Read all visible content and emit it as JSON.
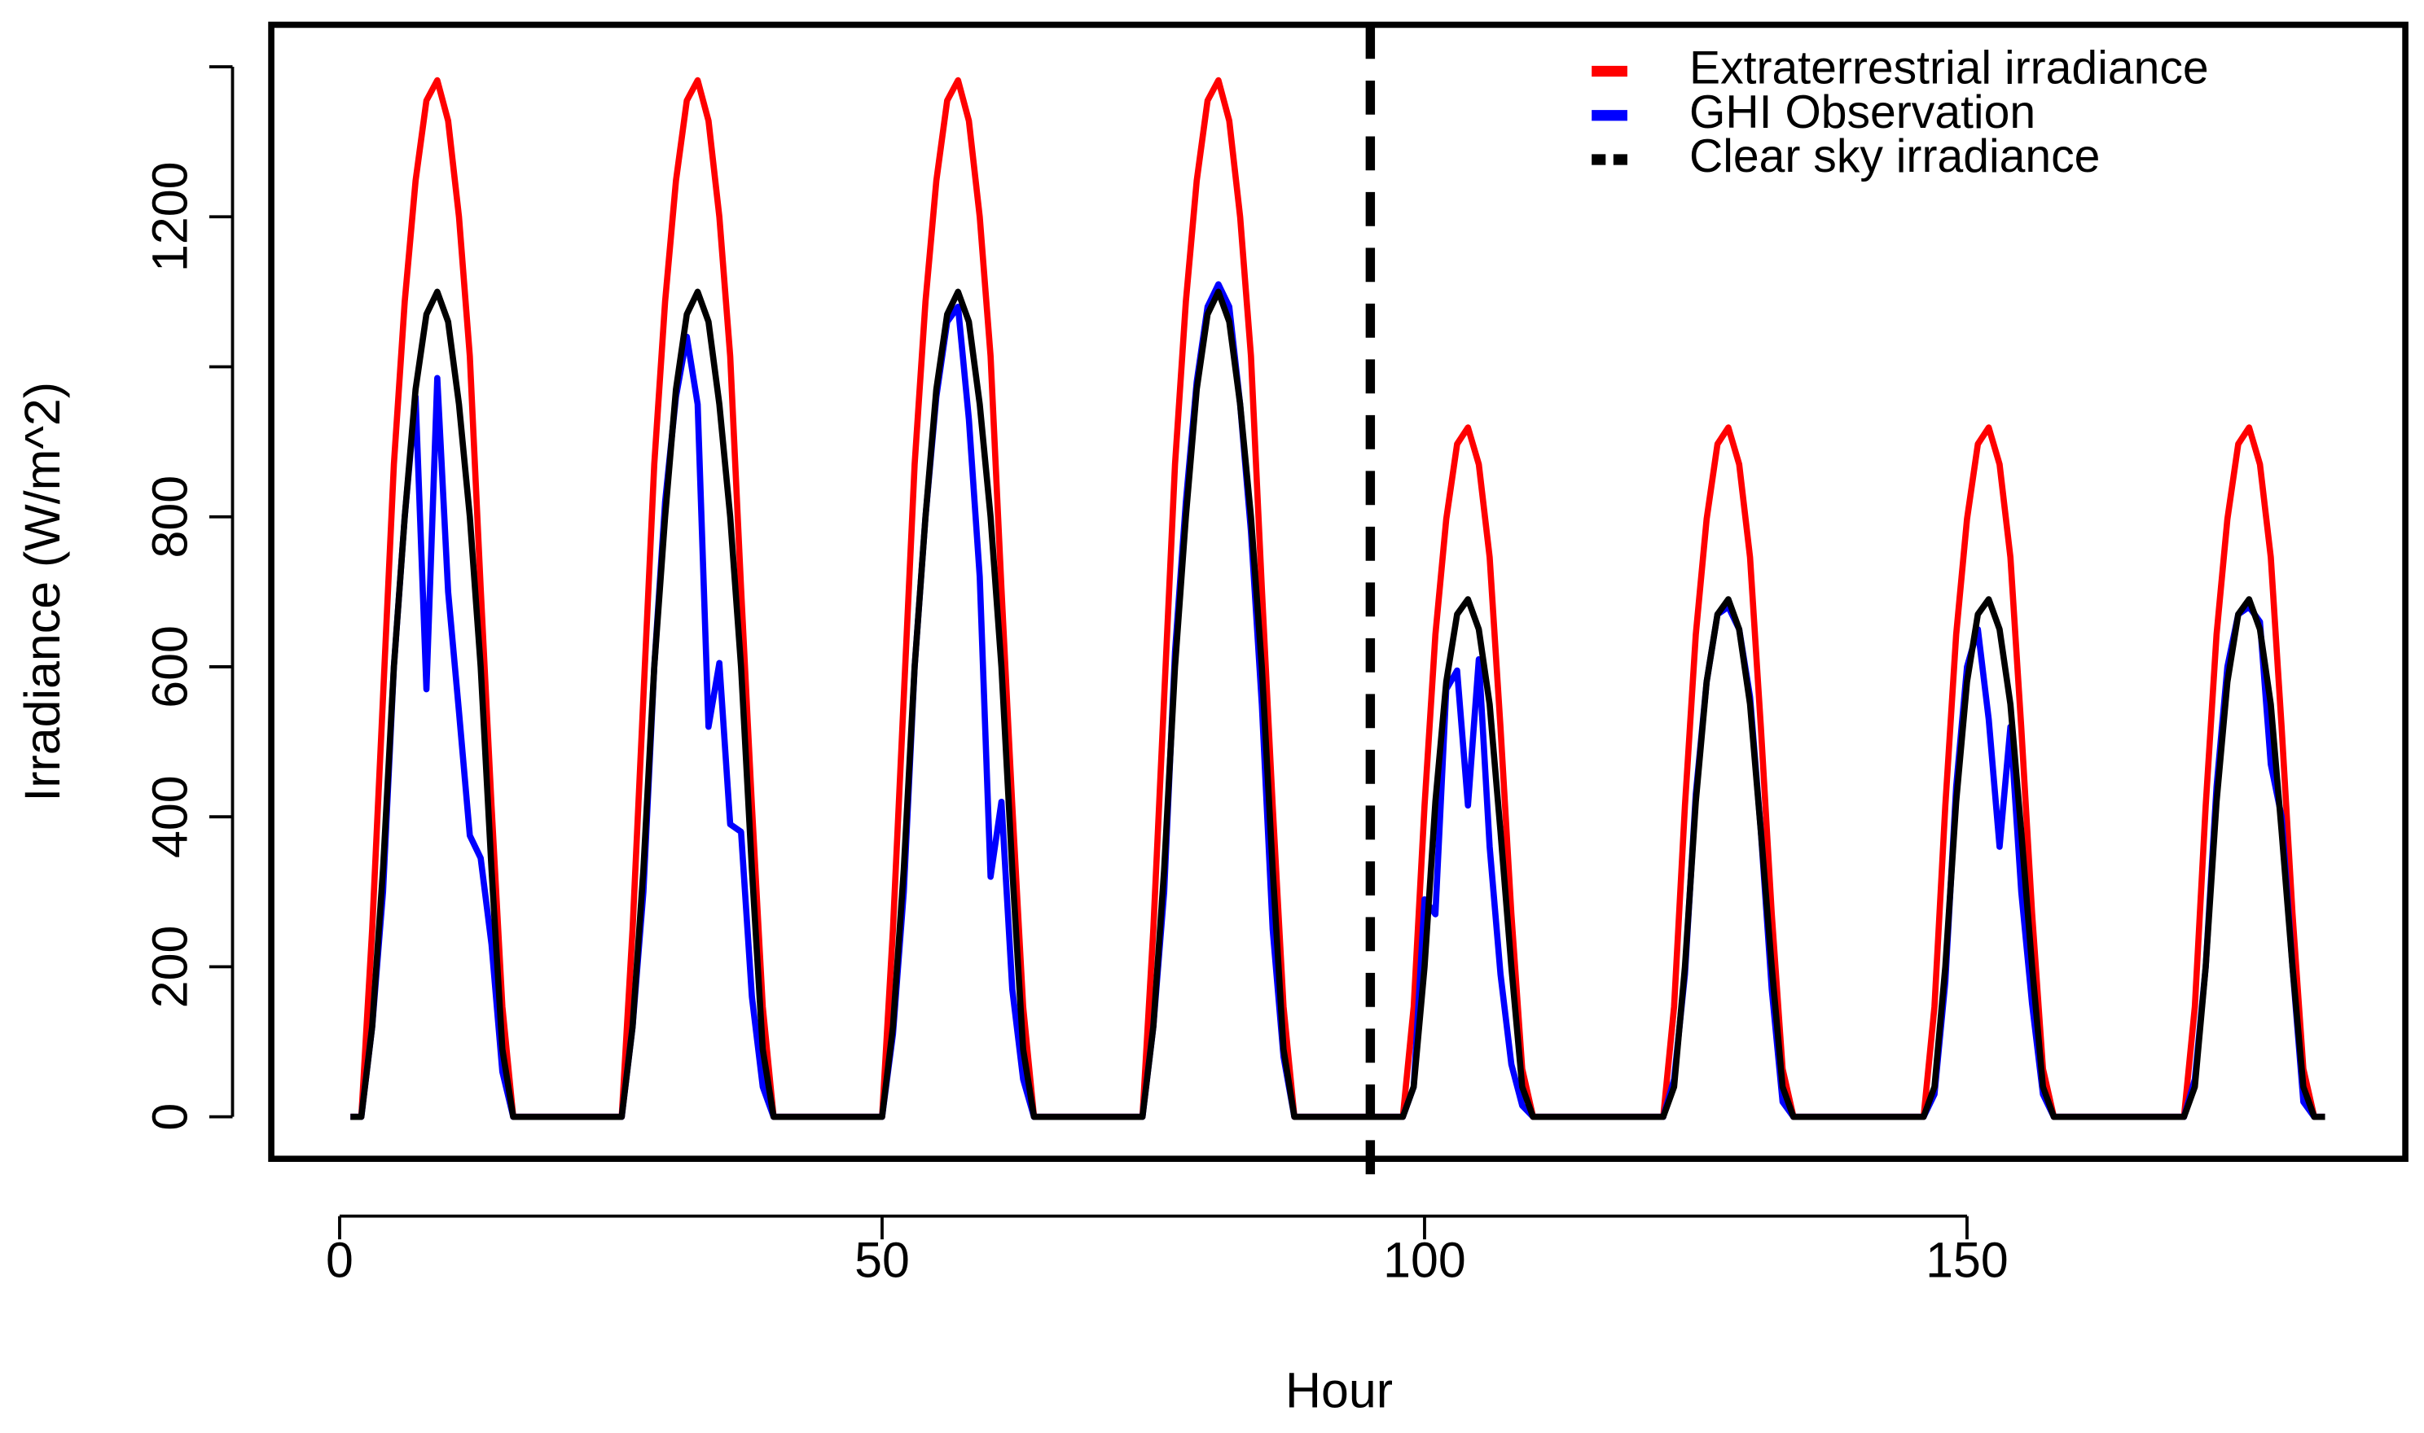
{
  "chart_data": {
    "type": "line",
    "xlabel": "Hour",
    "ylabel": "Irradiance (W/m^2)",
    "xlim": [
      -6.3,
      190.4
    ],
    "ylim": [
      -56,
      1456
    ],
    "xticks": [
      0,
      50,
      100,
      150
    ],
    "yticks": [
      0,
      200,
      400,
      600,
      800,
      1200
    ],
    "yticks_unlabeled": [
      1000,
      1400
    ],
    "vline": 95,
    "legend": "top-right",
    "x": [
      1,
      2,
      3,
      4,
      5,
      6,
      7,
      8,
      9,
      10,
      11,
      12,
      13,
      14,
      15,
      16,
      17,
      18,
      19,
      20,
      21,
      22,
      23,
      24,
      25,
      26,
      27,
      28,
      29,
      30,
      31,
      32,
      33,
      34,
      35,
      36,
      37,
      38,
      39,
      40,
      41,
      42,
      43,
      44,
      45,
      46,
      47,
      48,
      49,
      50,
      51,
      52,
      53,
      54,
      55,
      56,
      57,
      58,
      59,
      60,
      61,
      62,
      63,
      64,
      65,
      66,
      67,
      68,
      69,
      70,
      71,
      72,
      73,
      74,
      75,
      76,
      77,
      78,
      79,
      80,
      81,
      82,
      83,
      84,
      85,
      86,
      87,
      88,
      89,
      90,
      91,
      92,
      93,
      94,
      95,
      96,
      97,
      98,
      99,
      100,
      101,
      102,
      103,
      104,
      105,
      106,
      107,
      108,
      109,
      110,
      111,
      112,
      113,
      114,
      115,
      116,
      117,
      118,
      119,
      120,
      121,
      122,
      123,
      124,
      125,
      126,
      127,
      128,
      129,
      130,
      131,
      132,
      133,
      134,
      135,
      136,
      137,
      138,
      139,
      140,
      141,
      142,
      143,
      144,
      145,
      146,
      147,
      148,
      149,
      150,
      151,
      152,
      153,
      154,
      155,
      156,
      157,
      158,
      159,
      160,
      161,
      162,
      163,
      164,
      165,
      166,
      167,
      168,
      169,
      170,
      171,
      172,
      173,
      174,
      175,
      176,
      177,
      178,
      179,
      180,
      181,
      182,
      183
    ],
    "series": [
      {
        "name": "Extraterrestrial irradiance",
        "color": "#ff0000",
        "legend_style": "solid",
        "values": [
          0,
          0,
          250,
          560,
          870,
          1087,
          1248,
          1355,
          1382,
          1328,
          1200,
          1014,
          705,
          415,
          147,
          0,
          0,
          0,
          0,
          0,
          0,
          0,
          0,
          0,
          0,
          0,
          250,
          560,
          870,
          1087,
          1248,
          1355,
          1382,
          1328,
          1200,
          1014,
          705,
          415,
          147,
          0,
          0,
          0,
          0,
          0,
          0,
          0,
          0,
          0,
          0,
          0,
          250,
          560,
          870,
          1087,
          1248,
          1355,
          1382,
          1328,
          1200,
          1014,
          705,
          415,
          147,
          0,
          0,
          0,
          0,
          0,
          0,
          0,
          0,
          0,
          0,
          0,
          250,
          560,
          870,
          1087,
          1248,
          1355,
          1382,
          1328,
          1200,
          1014,
          705,
          415,
          147,
          0,
          0,
          0,
          0,
          0,
          0,
          0,
          0,
          0,
          0,
          0,
          147,
          415,
          643,
          797,
          897,
          919,
          870,
          746,
          519,
          271,
          64,
          0,
          0,
          0,
          0,
          0,
          0,
          0,
          0,
          0,
          0,
          0,
          0,
          0,
          147,
          415,
          643,
          797,
          897,
          919,
          870,
          746,
          519,
          271,
          64,
          0,
          0,
          0,
          0,
          0,
          0,
          0,
          0,
          0,
          0,
          0,
          0,
          0,
          147,
          415,
          643,
          797,
          897,
          919,
          870,
          746,
          519,
          271,
          64,
          0,
          0,
          0,
          0,
          0,
          0,
          0,
          0,
          0,
          0,
          0,
          0,
          0,
          147,
          415,
          643,
          797,
          897,
          919,
          870,
          746,
          519,
          271,
          64,
          0,
          0
        ]
      },
      {
        "name": "GHI Observation",
        "color": "#0000ff",
        "legend_style": "solid",
        "values": [
          0,
          0,
          120,
          300,
          600,
          800,
          960,
          570,
          985,
          700,
          540,
          375,
          345,
          230,
          60,
          0,
          0,
          0,
          0,
          0,
          0,
          0,
          0,
          0,
          0,
          0,
          120,
          300,
          600,
          820,
          960,
          1040,
          950,
          520,
          605,
          390,
          380,
          160,
          40,
          0,
          0,
          0,
          0,
          0,
          0,
          0,
          0,
          0,
          0,
          0,
          110,
          300,
          600,
          800,
          960,
          1060,
          1080,
          930,
          720,
          320,
          420,
          170,
          50,
          0,
          0,
          0,
          0,
          0,
          0,
          0,
          0,
          0,
          0,
          0,
          120,
          300,
          620,
          820,
          980,
          1080,
          1110,
          1080,
          950,
          780,
          550,
          250,
          80,
          0,
          0,
          0,
          0,
          0,
          0,
          0,
          0,
          0,
          0,
          0,
          40,
          290,
          270,
          570,
          595,
          415,
          610,
          360,
          190,
          70,
          15,
          0,
          0,
          0,
          0,
          0,
          0,
          0,
          0,
          0,
          0,
          0,
          0,
          0,
          50,
          190,
          430,
          580,
          670,
          680,
          650,
          560,
          380,
          170,
          20,
          0,
          0,
          0,
          0,
          0,
          0,
          0,
          0,
          0,
          0,
          0,
          0,
          0,
          30,
          180,
          440,
          600,
          650,
          530,
          360,
          520,
          300,
          150,
          30,
          0,
          0,
          0,
          0,
          0,
          0,
          0,
          0,
          0,
          0,
          0,
          0,
          0,
          50,
          200,
          440,
          600,
          670,
          680,
          660,
          470,
          400,
          200,
          20,
          0,
          0
        ]
      },
      {
        "name": "Clear sky irradiance",
        "color": "#000000",
        "legend_style": "dashed",
        "values": [
          0,
          0,
          120,
          330,
          600,
          800,
          970,
          1070,
          1100,
          1060,
          950,
          800,
          600,
          330,
          90,
          0,
          0,
          0,
          0,
          0,
          0,
          0,
          0,
          0,
          0,
          0,
          120,
          330,
          600,
          800,
          970,
          1070,
          1100,
          1060,
          950,
          800,
          600,
          330,
          90,
          0,
          0,
          0,
          0,
          0,
          0,
          0,
          0,
          0,
          0,
          0,
          120,
          330,
          600,
          800,
          970,
          1070,
          1100,
          1060,
          950,
          800,
          600,
          330,
          90,
          0,
          0,
          0,
          0,
          0,
          0,
          0,
          0,
          0,
          0,
          0,
          120,
          330,
          600,
          800,
          970,
          1070,
          1100,
          1060,
          950,
          800,
          600,
          330,
          90,
          0,
          0,
          0,
          0,
          0,
          0,
          0,
          0,
          0,
          0,
          0,
          40,
          200,
          420,
          580,
          670,
          690,
          650,
          550,
          380,
          200,
          40,
          0,
          0,
          0,
          0,
          0,
          0,
          0,
          0,
          0,
          0,
          0,
          0,
          0,
          40,
          200,
          420,
          580,
          670,
          690,
          650,
          550,
          380,
          200,
          40,
          0,
          0,
          0,
          0,
          0,
          0,
          0,
          0,
          0,
          0,
          0,
          0,
          0,
          40,
          200,
          420,
          580,
          670,
          690,
          650,
          550,
          380,
          200,
          40,
          0,
          0,
          0,
          0,
          0,
          0,
          0,
          0,
          0,
          0,
          0,
          0,
          0,
          40,
          200,
          420,
          580,
          670,
          690,
          650,
          550,
          380,
          200,
          40,
          0,
          0
        ]
      }
    ]
  }
}
